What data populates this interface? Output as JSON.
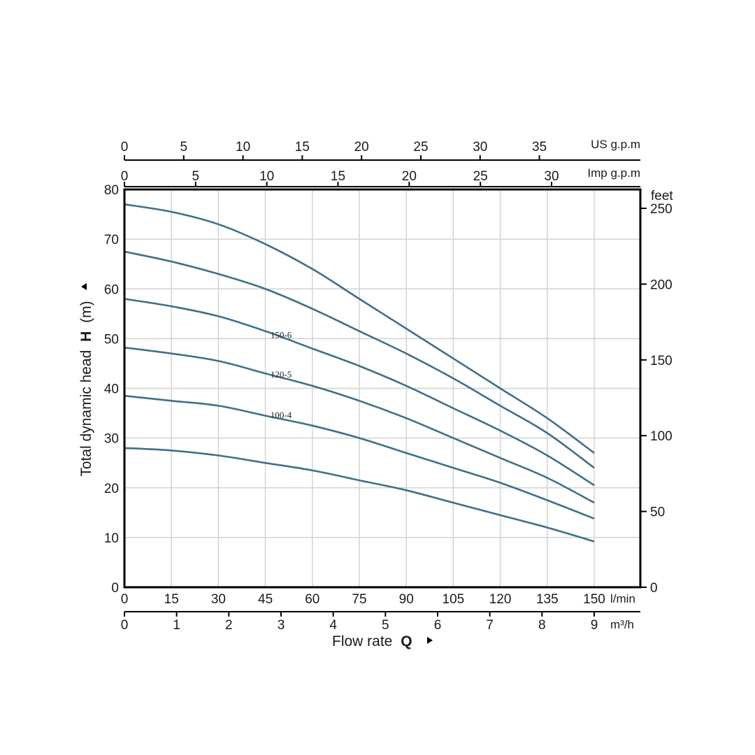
{
  "chart_data": {
    "type": "line",
    "x_axis": {
      "label": "Flow rate",
      "symbol": "Q",
      "unit": "l/min",
      "range": [
        0,
        150
      ],
      "ticks": [
        0,
        15,
        30,
        45,
        60,
        75,
        90,
        105,
        120,
        135,
        150
      ]
    },
    "x_axis_secondary": {
      "unit": "m³/h",
      "range": [
        0,
        9
      ],
      "ticks": [
        0,
        1,
        2,
        3,
        4,
        5,
        6,
        7,
        8,
        9
      ]
    },
    "x_axis_top_us": {
      "unit": "US g.p.m",
      "ticks": [
        0,
        5,
        10,
        15,
        20,
        25,
        30,
        35
      ]
    },
    "x_axis_top_imp": {
      "unit": "Imp g.p.m",
      "ticks": [
        0,
        5,
        10,
        15,
        20,
        25,
        30
      ]
    },
    "y_axis": {
      "label": "Total dynamic head",
      "symbol": "H",
      "unit": "(m)",
      "range": [
        0,
        80
      ],
      "ticks": [
        0,
        10,
        20,
        30,
        40,
        50,
        60,
        70,
        80
      ]
    },
    "y_axis_right": {
      "unit": "feet",
      "ticks": [
        0,
        50,
        100,
        150,
        200,
        250
      ]
    },
    "grid": true,
    "line_color": "#3f6f8a",
    "series": [
      {
        "name": "",
        "x": [
          0,
          15,
          30,
          45,
          60,
          75,
          90,
          105,
          120,
          135,
          150
        ],
        "y": [
          77,
          75.5,
          73,
          69,
          64,
          58,
          52,
          46,
          40,
          34,
          27
        ]
      },
      {
        "name": "",
        "x": [
          0,
          15,
          30,
          45,
          60,
          75,
          90,
          105,
          120,
          135,
          150
        ],
        "y": [
          67.5,
          65.5,
          63,
          60,
          56,
          51.5,
          47,
          42,
          36.5,
          31,
          24
        ]
      },
      {
        "name": "150-6",
        "x": [
          0,
          15,
          30,
          45,
          60,
          75,
          90,
          105,
          120,
          135,
          150
        ],
        "y": [
          58,
          56.5,
          54.5,
          51.5,
          48,
          44.5,
          40.5,
          36,
          31.5,
          26.5,
          20.5
        ]
      },
      {
        "name": "120-5",
        "x": [
          0,
          15,
          30,
          45,
          60,
          75,
          90,
          105,
          120,
          135,
          150
        ],
        "y": [
          48.2,
          47,
          45.5,
          43,
          40.5,
          37.5,
          34,
          30,
          26,
          22,
          17
        ]
      },
      {
        "name": "100-4",
        "x": [
          0,
          15,
          30,
          45,
          60,
          75,
          90,
          105,
          120,
          135,
          150
        ],
        "y": [
          38.5,
          37.5,
          36.5,
          34.5,
          32.5,
          30,
          27,
          24,
          21,
          17.5,
          13.8
        ]
      },
      {
        "name": "",
        "x": [
          0,
          15,
          30,
          45,
          60,
          75,
          90,
          105,
          120,
          135,
          150
        ],
        "y": [
          28,
          27.5,
          26.5,
          25,
          23.5,
          21.5,
          19.5,
          17,
          14.5,
          12,
          9.2
        ]
      }
    ],
    "series_label_points": [
      {
        "series": 2,
        "x": 54
      },
      {
        "series": 3,
        "x": 54
      },
      {
        "series": 4,
        "x": 54
      }
    ]
  }
}
